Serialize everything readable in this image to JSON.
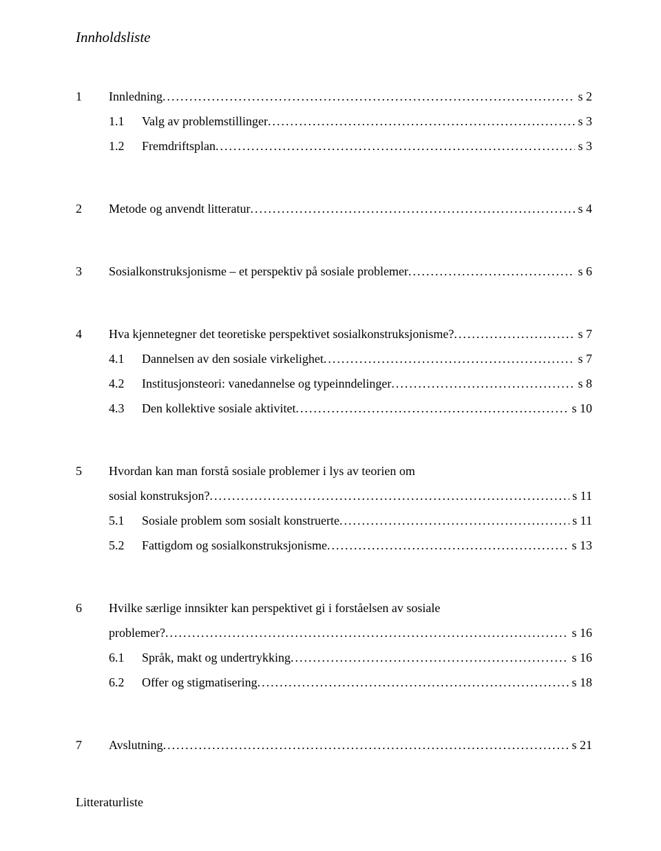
{
  "title": "Innholdsliste",
  "sections": {
    "s1": {
      "num": "1",
      "label": "Innledning",
      "page": "s 2",
      "sub": {
        "s1_1": {
          "num": "1.1",
          "label": "Valg av problemstillinger",
          "page": "s 3"
        },
        "s1_2": {
          "num": "1.2",
          "label": "Fremdriftsplan",
          "page": "s 3"
        }
      }
    },
    "s2": {
      "num": "2",
      "label": "Metode og anvendt litteratur",
      "page": "s 4"
    },
    "s3": {
      "num": "3",
      "label": "Sosialkonstruksjonisme – et perspektiv på sosiale problemer",
      "page": "s 6"
    },
    "s4": {
      "num": "4",
      "label": "Hva kjennetegner det teoretiske perspektivet sosialkonstruksjonisme?",
      "page": "s 7",
      "sub": {
        "s4_1": {
          "num": "4.1",
          "label": "Dannelsen av den sosiale virkelighet",
          "page": "s 7"
        },
        "s4_2": {
          "num": "4.2",
          "label": "Institusjonsteori: vanedannelse og typeinndelinger",
          "page": "s 8"
        },
        "s4_3": {
          "num": "4.3",
          "label": "Den kollektive sosiale aktivitet",
          "page": "s 10"
        }
      }
    },
    "s5": {
      "num": "5",
      "label_line1": "Hvordan kan man forstå sosiale problemer i lys av teorien om",
      "label_line2": "sosial konstruksjon?",
      "page": "s 11",
      "sub": {
        "s5_1": {
          "num": "5.1",
          "label": "Sosiale problem som sosialt konstruerte",
          "page": "s 11"
        },
        "s5_2": {
          "num": "5.2",
          "label": "Fattigdom og sosialkonstruksjonisme",
          "page": "s 13"
        }
      }
    },
    "s6": {
      "num": "6",
      "label_line1": "Hvilke særlige innsikter kan perspektivet gi i forståelsen av sosiale",
      "label_line2": "problemer?",
      "page": "s 16",
      "sub": {
        "s6_1": {
          "num": "6.1",
          "label": "Språk, makt og undertrykking",
          "page": "s 16"
        },
        "s6_2": {
          "num": "6.2",
          "label": "Offer og stigmatisering",
          "page": "s 18"
        }
      }
    },
    "s7": {
      "num": "7",
      "label": "Avslutning",
      "page": "s 21"
    }
  },
  "litteraturliste": "Litteraturliste"
}
